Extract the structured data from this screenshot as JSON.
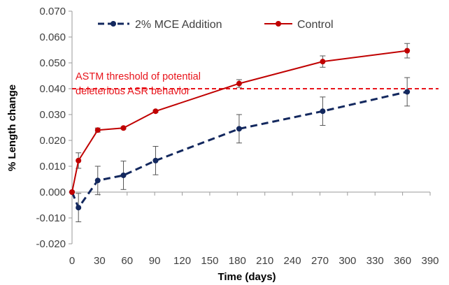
{
  "chart_data": {
    "type": "line",
    "title": "",
    "xlabel": "Time (days)",
    "ylabel": "% Length change",
    "xlim": [
      0,
      390
    ],
    "ylim": [
      -0.02,
      0.07
    ],
    "x_ticks": [
      0,
      30,
      60,
      90,
      120,
      150,
      180,
      210,
      240,
      270,
      300,
      330,
      360,
      390
    ],
    "x_tick_labels": [
      "0",
      "30",
      "60",
      "90",
      "120",
      "150",
      "180",
      "210",
      "240",
      "270",
      "300",
      "330",
      "360",
      "390"
    ],
    "y_ticks": [
      -0.02,
      -0.01,
      0,
      0.01,
      0.02,
      0.03,
      0.04,
      0.05,
      0.06,
      0.07
    ],
    "y_tick_labels": [
      "-0.020",
      "-0.010",
      "0.000",
      "0.010",
      "0.020",
      "0.030",
      "0.040",
      "0.050",
      "0.060",
      "0.070"
    ],
    "grid": false,
    "legend_position": "top",
    "series": [
      {
        "name": "2% MCE Addition",
        "color": "#13285e",
        "line_style": "dashed",
        "x": [
          0,
          7,
          28,
          56,
          91,
          182,
          273,
          365
        ],
        "y": [
          0.0,
          -0.006,
          0.0045,
          0.0065,
          0.0122,
          0.0245,
          0.0313,
          0.0388
        ],
        "error": [
          0.0,
          0.0055,
          0.0055,
          0.0055,
          0.0055,
          0.0055,
          0.0055,
          0.0055
        ]
      },
      {
        "name": "Control",
        "color": "#c00000",
        "line_style": "solid",
        "x": [
          0,
          7,
          28,
          56,
          91,
          182,
          273,
          365
        ],
        "y": [
          0.0,
          0.0122,
          0.024,
          0.0248,
          0.0313,
          0.042,
          0.0505,
          0.0547
        ],
        "error": [
          0.0,
          0.003,
          0.0008,
          0.0004,
          0.0004,
          0.0015,
          0.0022,
          0.0028
        ]
      }
    ],
    "threshold": {
      "value": 0.04,
      "color": "#e8141b",
      "line_style": "dashed",
      "label_line1": "ASTM threshold of potential",
      "label_line2": "deleterious ASR behavior"
    }
  }
}
